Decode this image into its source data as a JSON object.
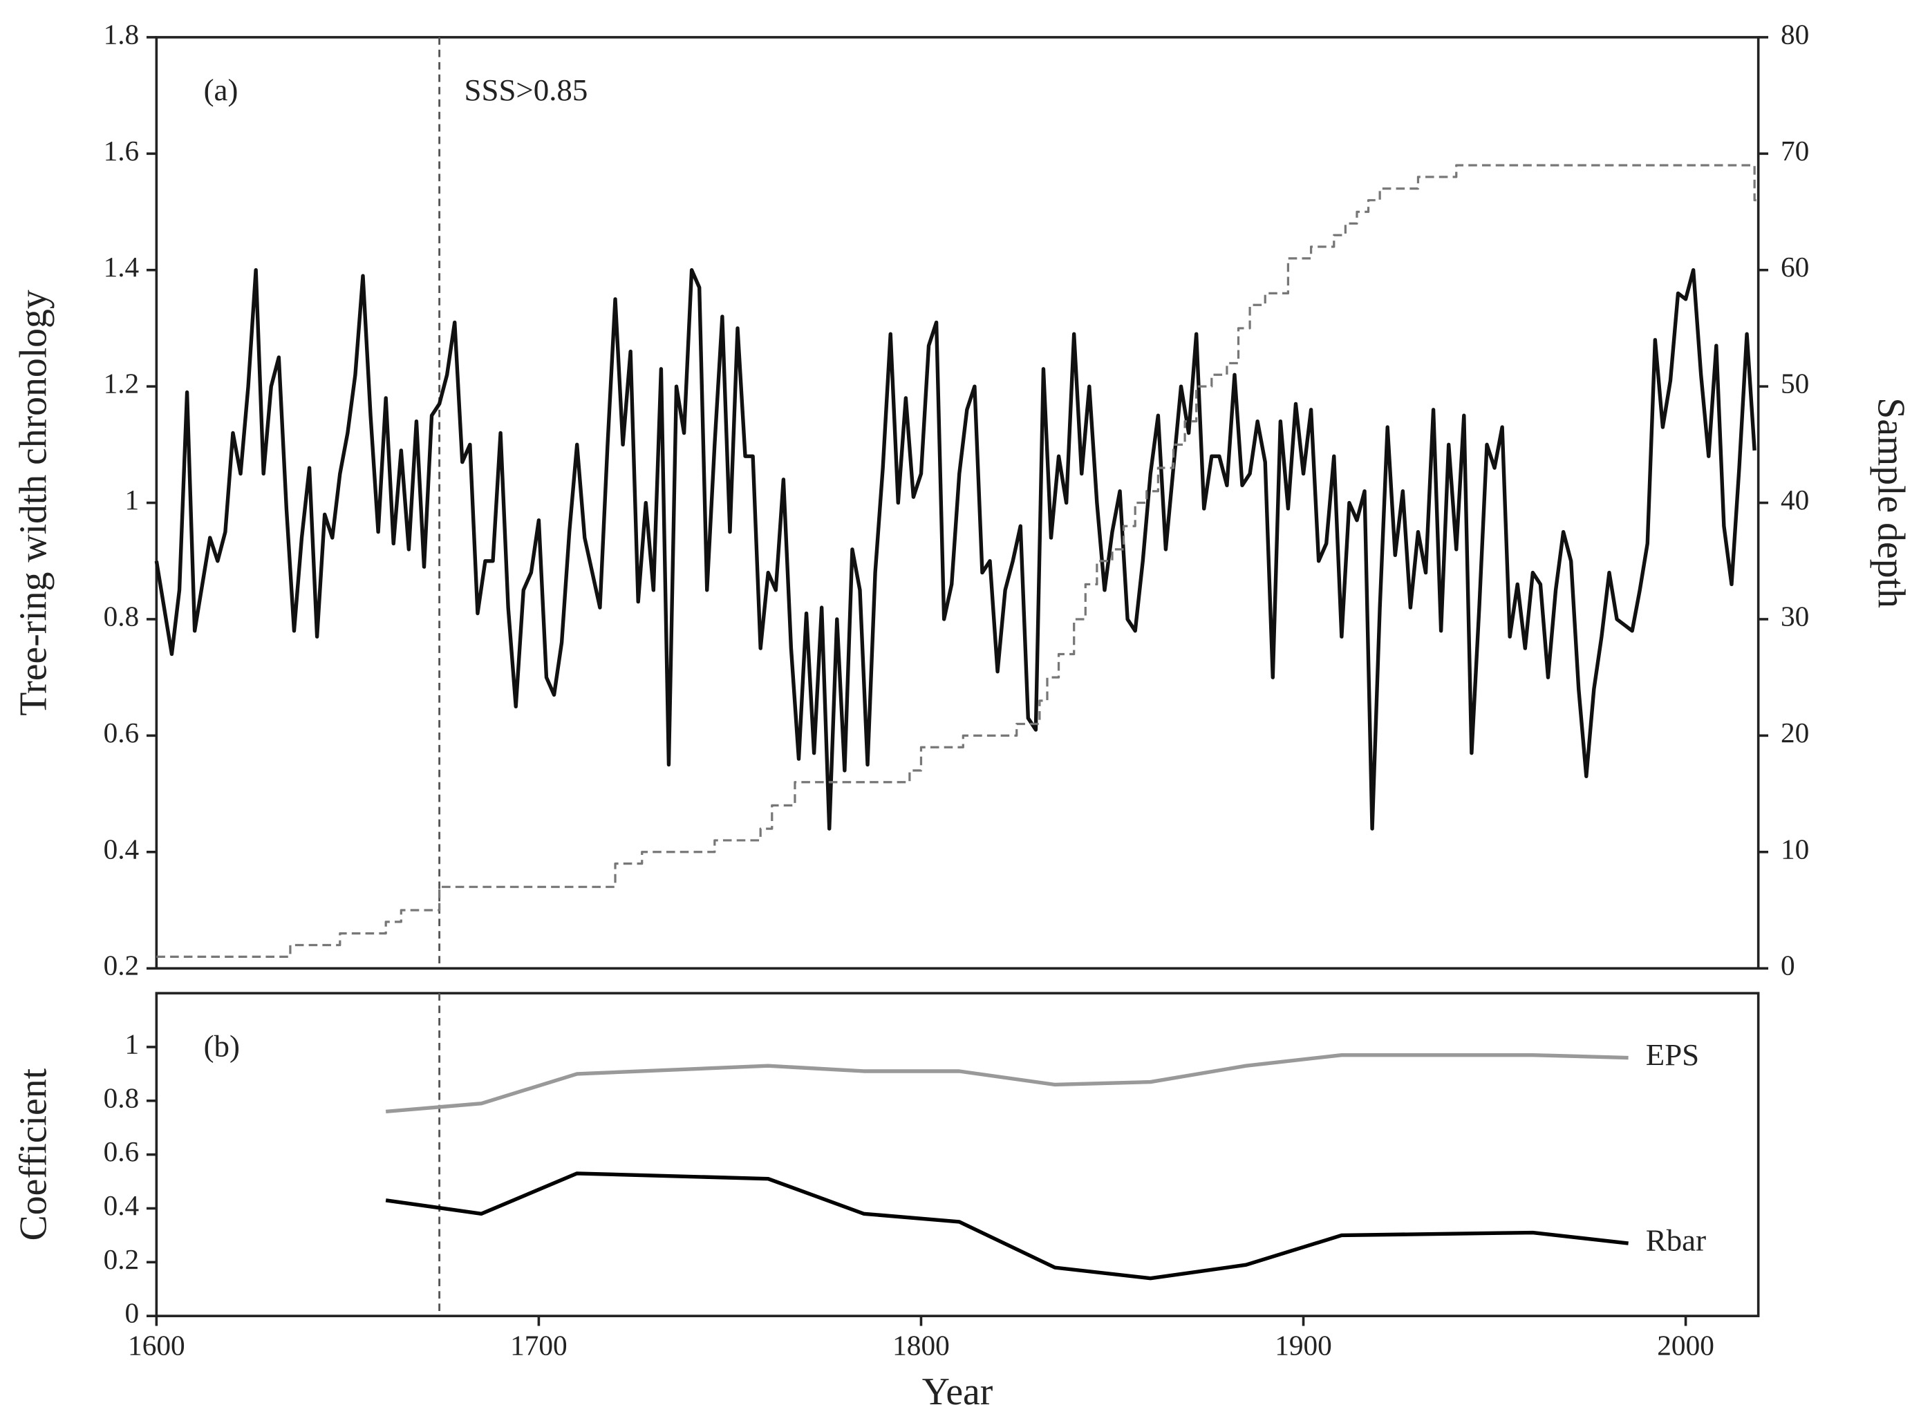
{
  "chart_data": [
    {
      "type": "line",
      "title": "(a)",
      "annotation": "SSS>0.85",
      "ylabel": "Tree-ring width chronology",
      "y2label": "Sample depth",
      "vline": 1674,
      "xlim": [
        1600,
        2019
      ],
      "ylim": [
        0.2,
        1.8
      ],
      "yticks": [
        0.2,
        0.4,
        0.6,
        0.8,
        1,
        1.2,
        1.4,
        1.6,
        1.8
      ],
      "y2lim": [
        0,
        80
      ],
      "y2ticks": [
        0,
        10,
        20,
        30,
        40,
        50,
        60,
        70,
        80
      ],
      "x": [
        1600,
        1602,
        1604,
        1606,
        1608,
        1610,
        1612,
        1614,
        1616,
        1618,
        1620,
        1622,
        1624,
        1626,
        1628,
        1630,
        1632,
        1634,
        1636,
        1638,
        1640,
        1642,
        1644,
        1646,
        1648,
        1650,
        1652,
        1654,
        1656,
        1658,
        1660,
        1662,
        1664,
        1666,
        1668,
        1670,
        1672,
        1674,
        1676,
        1678,
        1680,
        1682,
        1684,
        1686,
        1688,
        1690,
        1692,
        1694,
        1696,
        1698,
        1700,
        1702,
        1704,
        1706,
        1708,
        1710,
        1712,
        1714,
        1716,
        1718,
        1720,
        1722,
        1724,
        1726,
        1728,
        1730,
        1732,
        1734,
        1736,
        1738,
        1740,
        1742,
        1744,
        1746,
        1748,
        1750,
        1752,
        1754,
        1756,
        1758,
        1760,
        1762,
        1764,
        1766,
        1768,
        1770,
        1772,
        1774,
        1776,
        1778,
        1780,
        1782,
        1784,
        1786,
        1788,
        1790,
        1792,
        1794,
        1796,
        1798,
        1800,
        1802,
        1804,
        1806,
        1808,
        1810,
        1812,
        1814,
        1816,
        1818,
        1820,
        1822,
        1824,
        1826,
        1828,
        1830,
        1832,
        1834,
        1836,
        1838,
        1840,
        1842,
        1844,
        1846,
        1848,
        1850,
        1852,
        1854,
        1856,
        1858,
        1860,
        1862,
        1864,
        1866,
        1868,
        1870,
        1872,
        1874,
        1876,
        1878,
        1880,
        1882,
        1884,
        1886,
        1888,
        1890,
        1892,
        1894,
        1896,
        1898,
        1900,
        1902,
        1904,
        1906,
        1908,
        1910,
        1912,
        1914,
        1916,
        1918,
        1920,
        1922,
        1924,
        1926,
        1928,
        1930,
        1932,
        1934,
        1936,
        1938,
        1940,
        1942,
        1944,
        1946,
        1948,
        1950,
        1952,
        1954,
        1956,
        1958,
        1960,
        1962,
        1964,
        1966,
        1968,
        1970,
        1972,
        1974,
        1976,
        1978,
        1980,
        1982,
        1984,
        1986,
        1988,
        1990,
        1992,
        1994,
        1996,
        1998,
        2000,
        2002,
        2004,
        2006,
        2008,
        2010,
        2012,
        2014,
        2016,
        2018
      ],
      "series": [
        {
          "color": "#111111",
          "values": [
            0.9,
            0.82,
            0.74,
            0.85,
            1.19,
            0.78,
            0.86,
            0.94,
            0.9,
            0.95,
            1.12,
            1.05,
            1.2,
            1.4,
            1.05,
            1.2,
            1.25,
            0.99,
            0.78,
            0.94,
            1.06,
            0.77,
            0.98,
            0.94,
            1.05,
            1.12,
            1.22,
            1.39,
            1.15,
            0.95,
            1.18,
            0.93,
            1.09,
            0.92,
            1.14,
            0.89,
            1.15,
            1.17,
            1.22,
            1.31,
            1.07,
            1.1,
            0.81,
            0.9,
            0.9,
            1.12,
            0.82,
            0.65,
            0.85,
            0.88,
            0.97,
            0.7,
            0.67,
            0.76,
            0.95,
            1.1,
            0.94,
            0.88,
            0.82,
            1.1,
            1.35,
            1.1,
            1.26,
            0.83,
            1.0,
            0.85,
            1.23,
            0.55,
            1.2,
            1.12,
            1.4,
            1.37,
            0.85,
            1.1,
            1.32,
            0.95,
            1.3,
            1.08,
            1.08,
            0.75,
            0.88,
            0.85,
            1.04,
            0.75,
            0.56,
            0.81,
            0.57,
            0.82,
            0.44,
            0.8,
            0.54,
            0.92,
            0.85,
            0.55,
            0.88,
            1.06,
            1.29,
            1.0,
            1.18,
            1.01,
            1.05,
            1.27,
            1.31,
            0.8,
            0.86,
            1.05,
            1.16,
            1.2,
            0.88,
            0.9,
            0.71,
            0.85,
            0.9,
            0.96,
            0.63,
            0.61,
            1.23,
            0.94,
            1.08,
            1.0,
            1.29,
            1.05,
            1.2,
            1.0,
            0.85,
            0.95,
            1.02,
            0.8,
            0.78,
            0.9,
            1.05,
            1.15,
            0.92,
            1.06,
            1.2,
            1.12,
            1.29,
            0.99,
            1.08,
            1.08,
            1.03,
            1.22,
            1.03,
            1.05,
            1.14,
            1.07,
            0.7,
            1.14,
            0.99,
            1.17,
            1.05,
            1.16,
            0.9,
            0.93,
            1.08,
            0.77,
            1.0,
            0.97,
            1.02,
            0.44,
            0.82,
            1.13,
            0.91,
            1.02,
            0.82,
            0.95,
            0.88,
            1.16,
            0.78,
            1.1,
            0.92,
            1.15,
            0.57,
            0.82,
            1.1,
            1.06,
            1.13,
            0.77,
            0.86,
            0.75,
            0.88,
            0.86,
            0.7,
            0.85,
            0.95,
            0.9,
            0.68,
            0.53,
            0.68,
            0.77,
            0.88,
            0.8,
            0.79,
            0.78,
            0.85,
            0.93,
            1.28,
            1.13,
            1.21,
            1.36,
            1.35,
            1.4,
            1.22,
            1.08,
            1.27,
            0.96,
            0.86,
            1.06,
            1.29,
            1.09
          ]
        },
        {
          "color": "#777777",
          "axis": "y2",
          "linestyle": "dashed",
          "step": true,
          "x": [
            1600,
            1635,
            1648,
            1660,
            1664,
            1674,
            1720,
            1727,
            1746,
            1758,
            1761,
            1767,
            1797,
            1800,
            1811,
            1825,
            1831,
            1833,
            1836,
            1840,
            1843,
            1846,
            1850,
            1853,
            1856,
            1859,
            1862,
            1866,
            1869,
            1872,
            1876,
            1880,
            1883,
            1886,
            1890,
            1896,
            1902,
            1908,
            1911,
            1914,
            1917,
            1920,
            1930,
            1940,
            1945,
            2018
          ],
          "values": [
            1,
            2,
            3,
            4,
            5,
            7,
            9,
            10,
            11,
            12,
            14,
            16,
            17,
            19,
            20,
            21,
            23,
            25,
            27,
            30,
            33,
            35,
            36,
            38,
            40,
            41,
            43,
            45,
            47,
            50,
            51,
            52,
            55,
            57,
            58,
            61,
            62,
            63,
            64,
            65,
            66,
            67,
            68,
            69,
            69,
            66
          ]
        }
      ]
    },
    {
      "type": "line",
      "title": "(b)",
      "ylabel": "Coefficient",
      "xlabel": "Year",
      "vline": 1674,
      "xlim": [
        1600,
        2019
      ],
      "xticks": [
        1600,
        1700,
        1800,
        1900,
        2000
      ],
      "ylim": [
        0,
        1.2
      ],
      "yticks": [
        0,
        0.2,
        0.4,
        0.6,
        0.8,
        1
      ],
      "series": [
        {
          "name": "EPS",
          "color": "#999999",
          "x": [
            1660,
            1685,
            1710,
            1760,
            1785,
            1810,
            1835,
            1860,
            1885,
            1910,
            1935,
            1960,
            1985
          ],
          "values": [
            0.76,
            0.79,
            0.9,
            0.93,
            0.91,
            0.91,
            0.86,
            0.87,
            0.93,
            0.97,
            0.97,
            0.97,
            0.96
          ]
        },
        {
          "name": "Rbar",
          "color": "#000000",
          "x": [
            1660,
            1685,
            1710,
            1760,
            1785,
            1810,
            1835,
            1860,
            1885,
            1910,
            1960,
            1985
          ],
          "values": [
            0.43,
            0.38,
            0.53,
            0.51,
            0.38,
            0.35,
            0.18,
            0.14,
            0.19,
            0.3,
            0.31,
            0.27
          ]
        }
      ]
    }
  ]
}
